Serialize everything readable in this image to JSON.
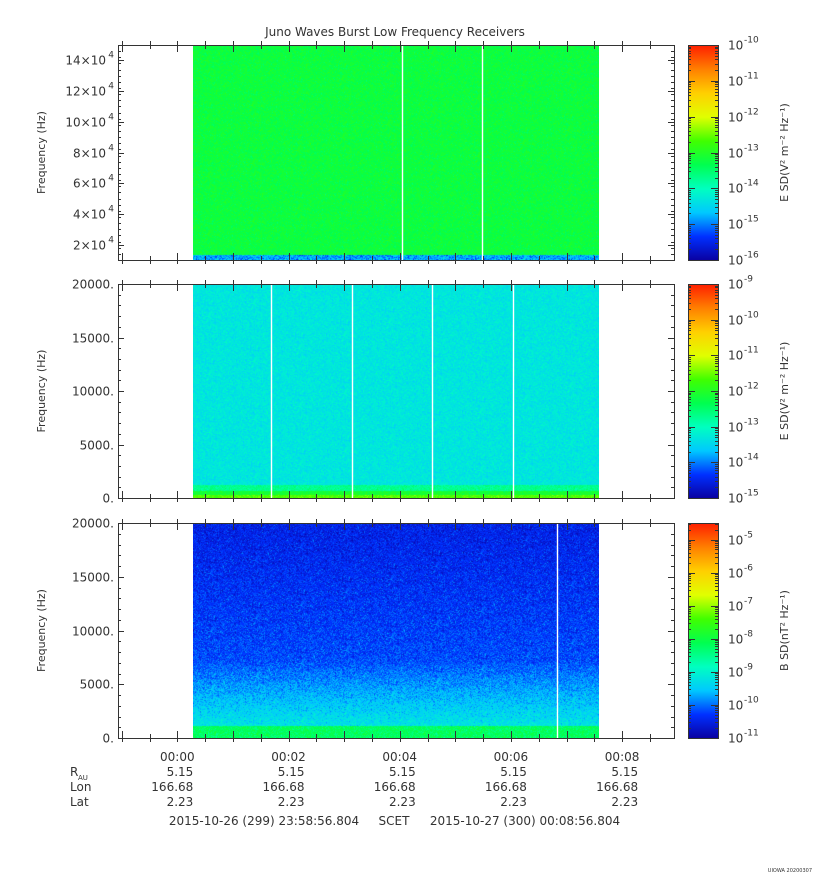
{
  "chart_data": {
    "type": "heatmap",
    "title": "Juno Waves Burst Low Frequency Receivers",
    "xaxis": {
      "ticks": [
        "00:00",
        "00:02",
        "00:04",
        "00:06",
        "00:08"
      ],
      "tick_minutes": [
        1.0667,
        3.0667,
        5.0667,
        7.0667,
        9.0667
      ],
      "range_minutes": [
        0,
        10
      ],
      "data_range_minutes": [
        1.35,
        8.65
      ],
      "ephemeris": [
        {
          "label": "R",
          "sub": "AU",
          "values": [
            "5.15",
            "5.15",
            "5.15",
            "5.15",
            "5.15"
          ]
        },
        {
          "label": "Lon",
          "sub": "",
          "values": [
            "166.68",
            "166.68",
            "166.68",
            "166.68",
            "166.68"
          ]
        },
        {
          "label": "Lat",
          "sub": "",
          "values": [
            "2.23",
            "2.23",
            "2.23",
            "2.23",
            "2.23"
          ]
        }
      ],
      "range_start": "2015-10-26 (299) 23:58:56.804",
      "range_mid": "SCET",
      "range_end": "2015-10-27 (300) 00:08:56.804"
    },
    "panels": [
      {
        "ylabel": "Frequency (Hz)",
        "ylim": [
          10000,
          150000
        ],
        "yticks": [
          20000,
          40000,
          60000,
          80000,
          100000,
          120000,
          140000
        ],
        "ytick_labels": [
          {
            "mant": "2×10",
            "exp": "4"
          },
          {
            "mant": "4×10",
            "exp": "4"
          },
          {
            "mant": "6×10",
            "exp": "4"
          },
          {
            "mant": "8×10",
            "exp": "4"
          },
          {
            "mant": "10×10",
            "exp": "4"
          },
          {
            "mant": "12×10",
            "exp": "4"
          },
          {
            "mant": "14×10",
            "exp": "4"
          }
        ],
        "colorbar_label": "E SD(V² m⁻² Hz⁻¹)",
        "colorbar_exp_range": [
          -16,
          -10
        ],
        "colorbar_labels": [
          "-16",
          "-15",
          "-14",
          "-13",
          "-12",
          "-11",
          "-10"
        ],
        "typical_exponent": -13.2,
        "gaps_minutes": [
          5.1,
          6.55
        ]
      },
      {
        "ylabel": "Frequency (Hz)",
        "ylim": [
          0,
          20000
        ],
        "yticks": [
          0,
          5000,
          10000,
          15000,
          20000
        ],
        "ytick_labels": [
          {
            "mant": "0.",
            "exp": ""
          },
          {
            "mant": "5000.",
            "exp": ""
          },
          {
            "mant": "10000.",
            "exp": ""
          },
          {
            "mant": "15000.",
            "exp": ""
          },
          {
            "mant": "20000.",
            "exp": ""
          }
        ],
        "colorbar_label": "E SD(V² m⁻² Hz⁻¹)",
        "colorbar_exp_range": [
          -15,
          -9
        ],
        "colorbar_labels": [
          "-15",
          "-14",
          "-13",
          "-12",
          "-11",
          "-10",
          "-9"
        ],
        "typical_exponent": -13.3,
        "gaps_minutes": [
          2.75,
          4.2,
          5.65,
          7.1
        ]
      },
      {
        "ylabel": "Frequency (Hz)",
        "ylim": [
          0,
          20000
        ],
        "yticks": [
          0,
          5000,
          10000,
          15000,
          20000
        ],
        "ytick_labels": [
          {
            "mant": "0.",
            "exp": ""
          },
          {
            "mant": "5000.",
            "exp": ""
          },
          {
            "mant": "10000.",
            "exp": ""
          },
          {
            "mant": "15000.",
            "exp": ""
          },
          {
            "mant": "20000.",
            "exp": ""
          }
        ],
        "colorbar_label": "B SD(nT² Hz⁻¹)",
        "colorbar_exp_range": [
          -11,
          -4.5
        ],
        "colorbar_labels": [
          "-11",
          "-10",
          "-9",
          "-8",
          "-7",
          "-6",
          "-5"
        ],
        "typical_exponent": -10.2,
        "gaps_minutes": [
          7.9
        ]
      }
    ],
    "colormap": [
      "#0a00a0",
      "#0030ff",
      "#00c8ff",
      "#00ffc0",
      "#00ff50",
      "#40ff00",
      "#e0ff00",
      "#ffd000",
      "#ff8000",
      "#ff2000"
    ],
    "footer": "UIOWA 20200307"
  }
}
